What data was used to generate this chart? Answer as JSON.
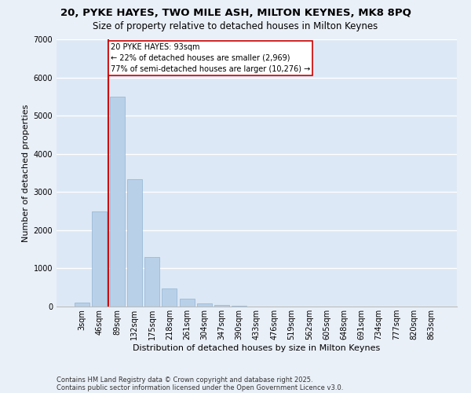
{
  "title_line1": "20, PYKE HAYES, TWO MILE ASH, MILTON KEYNES, MK8 8PQ",
  "title_line2": "Size of property relative to detached houses in Milton Keynes",
  "xlabel": "Distribution of detached houses by size in Milton Keynes",
  "ylabel": "Number of detached properties",
  "categories": [
    "3sqm",
    "46sqm",
    "89sqm",
    "132sqm",
    "175sqm",
    "218sqm",
    "261sqm",
    "304sqm",
    "347sqm",
    "390sqm",
    "433sqm",
    "476sqm",
    "519sqm",
    "562sqm",
    "605sqm",
    "648sqm",
    "691sqm",
    "734sqm",
    "777sqm",
    "820sqm",
    "863sqm"
  ],
  "values": [
    100,
    2500,
    5500,
    3330,
    1300,
    480,
    210,
    90,
    50,
    30,
    0,
    0,
    0,
    0,
    0,
    0,
    0,
    0,
    0,
    0,
    0
  ],
  "bar_color": "#b8d0e8",
  "bar_edge_color": "#90b4d4",
  "vline_color": "#cc0000",
  "vline_index": 1.5,
  "annotation_text": "20 PYKE HAYES: 93sqm\n← 22% of detached houses are smaller (2,969)\n77% of semi-detached houses are larger (10,276) →",
  "annotation_box_edge_color": "#cc0000",
  "ylim": [
    0,
    7000
  ],
  "yticks": [
    0,
    1000,
    2000,
    3000,
    4000,
    5000,
    6000,
    7000
  ],
  "plot_bg_color": "#dce8f5",
  "fig_bg_color": "#eaf0f8",
  "grid_color": "#ffffff",
  "footer_line1": "Contains HM Land Registry data © Crown copyright and database right 2025.",
  "footer_line2": "Contains public sector information licensed under the Open Government Licence v3.0.",
  "title_fontsize": 9.5,
  "subtitle_fontsize": 8.5,
  "axis_label_fontsize": 8,
  "tick_fontsize": 7,
  "annotation_fontsize": 7,
  "footer_fontsize": 6
}
